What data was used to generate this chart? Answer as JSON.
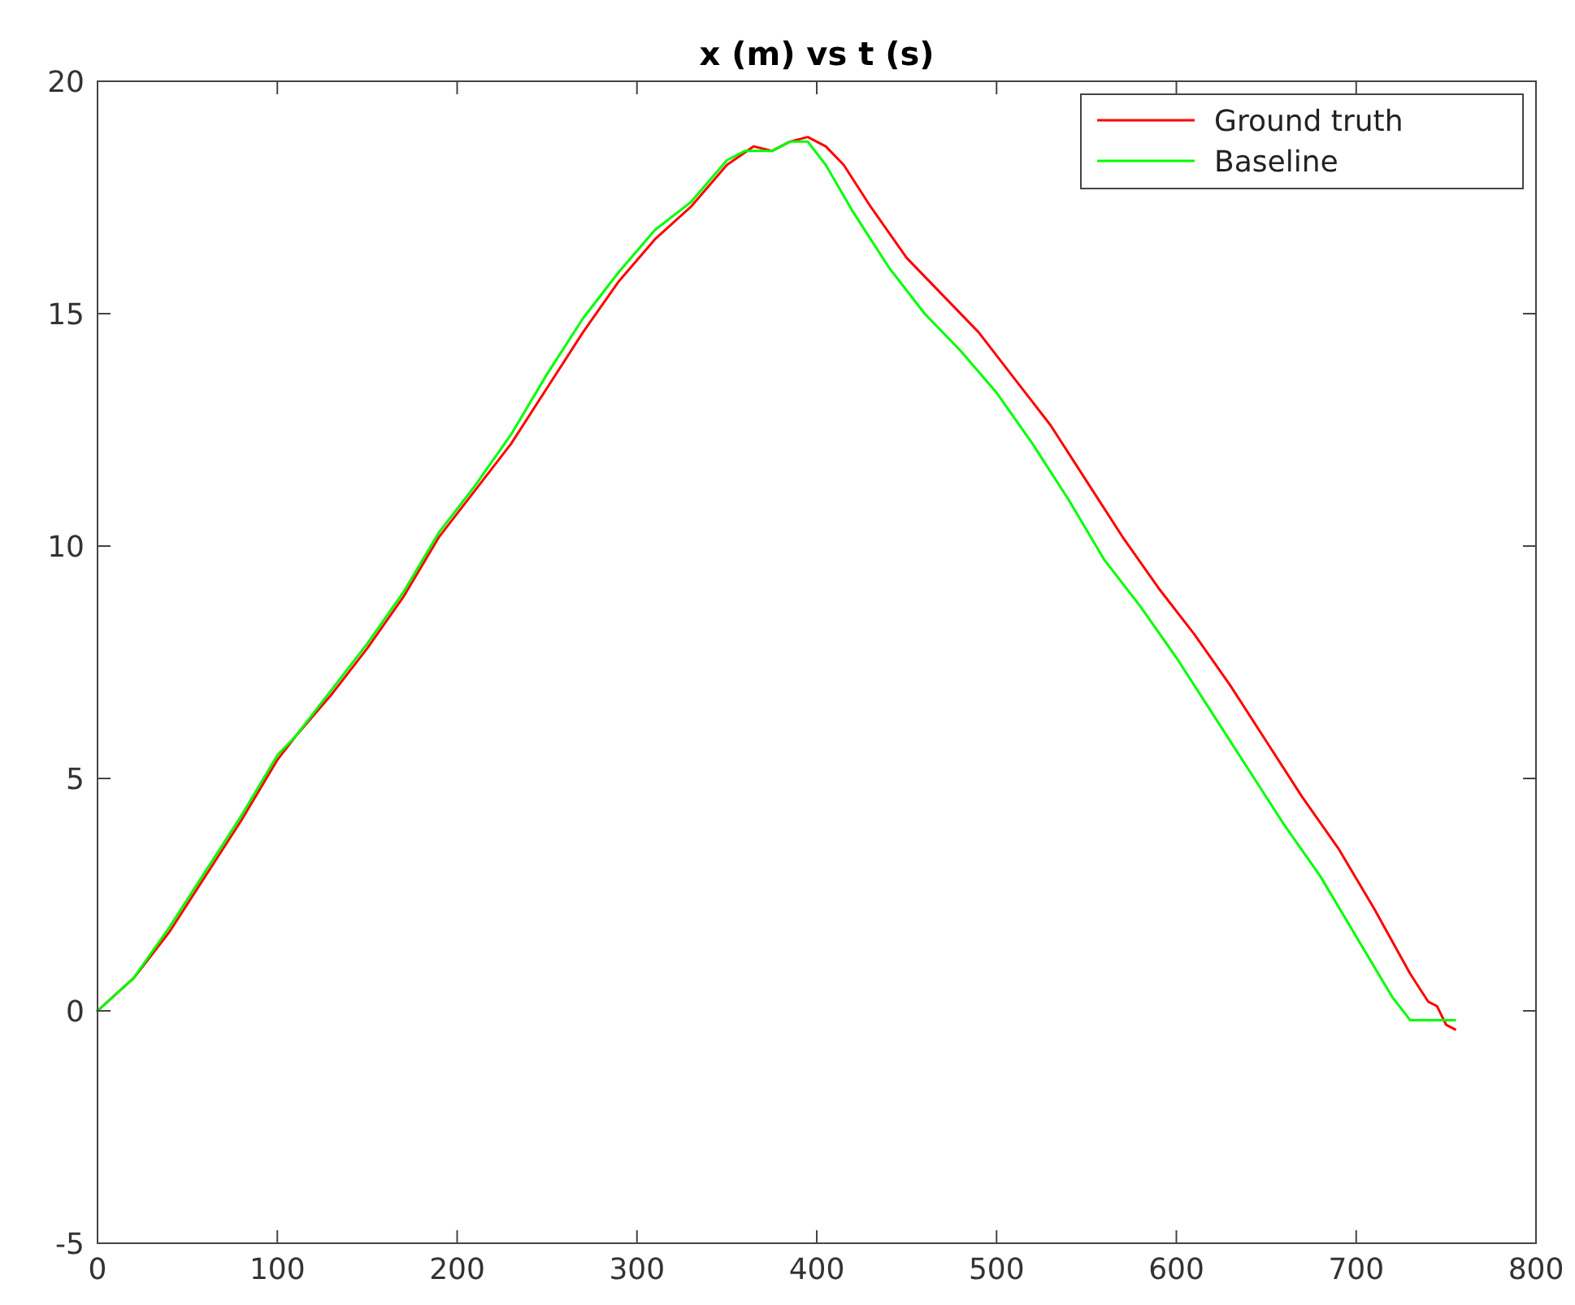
{
  "chart_data": {
    "type": "line",
    "title": "x (m) vs t (s)",
    "xlim": [
      0,
      800
    ],
    "xticks": [
      0,
      100,
      200,
      300,
      400,
      500,
      600,
      700,
      800
    ],
    "ylim": [
      -5,
      20
    ],
    "yticks": [
      -5,
      0,
      5,
      10,
      15,
      20
    ],
    "grid": false,
    "legend": "top right",
    "line_style": "solid",
    "marker": "none",
    "series": [
      {
        "name": "Ground truth",
        "color": "#ff0000",
        "x": [
          0,
          20,
          40,
          60,
          80,
          100,
          110,
          130,
          150,
          170,
          190,
          210,
          230,
          250,
          270,
          290,
          310,
          330,
          350,
          365,
          375,
          385,
          395,
          405,
          415,
          430,
          450,
          470,
          490,
          510,
          530,
          550,
          570,
          590,
          610,
          630,
          650,
          670,
          690,
          710,
          730,
          740,
          745,
          750,
          755
        ],
        "values": [
          0,
          0.7,
          1.7,
          2.9,
          4.1,
          5.4,
          5.9,
          6.8,
          7.8,
          8.9,
          10.2,
          11.2,
          12.2,
          13.4,
          14.6,
          15.7,
          16.6,
          17.3,
          18.2,
          18.6,
          18.5,
          18.7,
          18.8,
          18.6,
          18.2,
          17.3,
          16.2,
          15.4,
          14.6,
          13.6,
          12.6,
          11.4,
          10.2,
          9.1,
          8.1,
          7.0,
          5.8,
          4.6,
          3.5,
          2.2,
          0.8,
          0.2,
          0.1,
          -0.3,
          -0.4
        ]
      },
      {
        "name": "Baseline",
        "color": "#00ff00",
        "x": [
          0,
          20,
          40,
          60,
          80,
          100,
          110,
          130,
          150,
          170,
          190,
          210,
          230,
          250,
          270,
          290,
          310,
          330,
          350,
          360,
          375,
          385,
          395,
          405,
          420,
          440,
          460,
          480,
          500,
          520,
          540,
          560,
          580,
          600,
          620,
          640,
          660,
          680,
          700,
          720,
          730,
          745,
          755
        ],
        "values": [
          0,
          0.7,
          1.8,
          3.0,
          4.2,
          5.5,
          5.9,
          6.9,
          7.9,
          9.0,
          10.3,
          11.3,
          12.4,
          13.7,
          14.9,
          15.9,
          16.8,
          17.4,
          18.3,
          18.5,
          18.5,
          18.7,
          18.7,
          18.2,
          17.2,
          16.0,
          15.0,
          14.2,
          13.3,
          12.2,
          11.0,
          9.7,
          8.7,
          7.6,
          6.4,
          5.2,
          4.0,
          2.9,
          1.6,
          0.3,
          -0.2,
          -0.2,
          -0.2
        ]
      }
    ]
  }
}
